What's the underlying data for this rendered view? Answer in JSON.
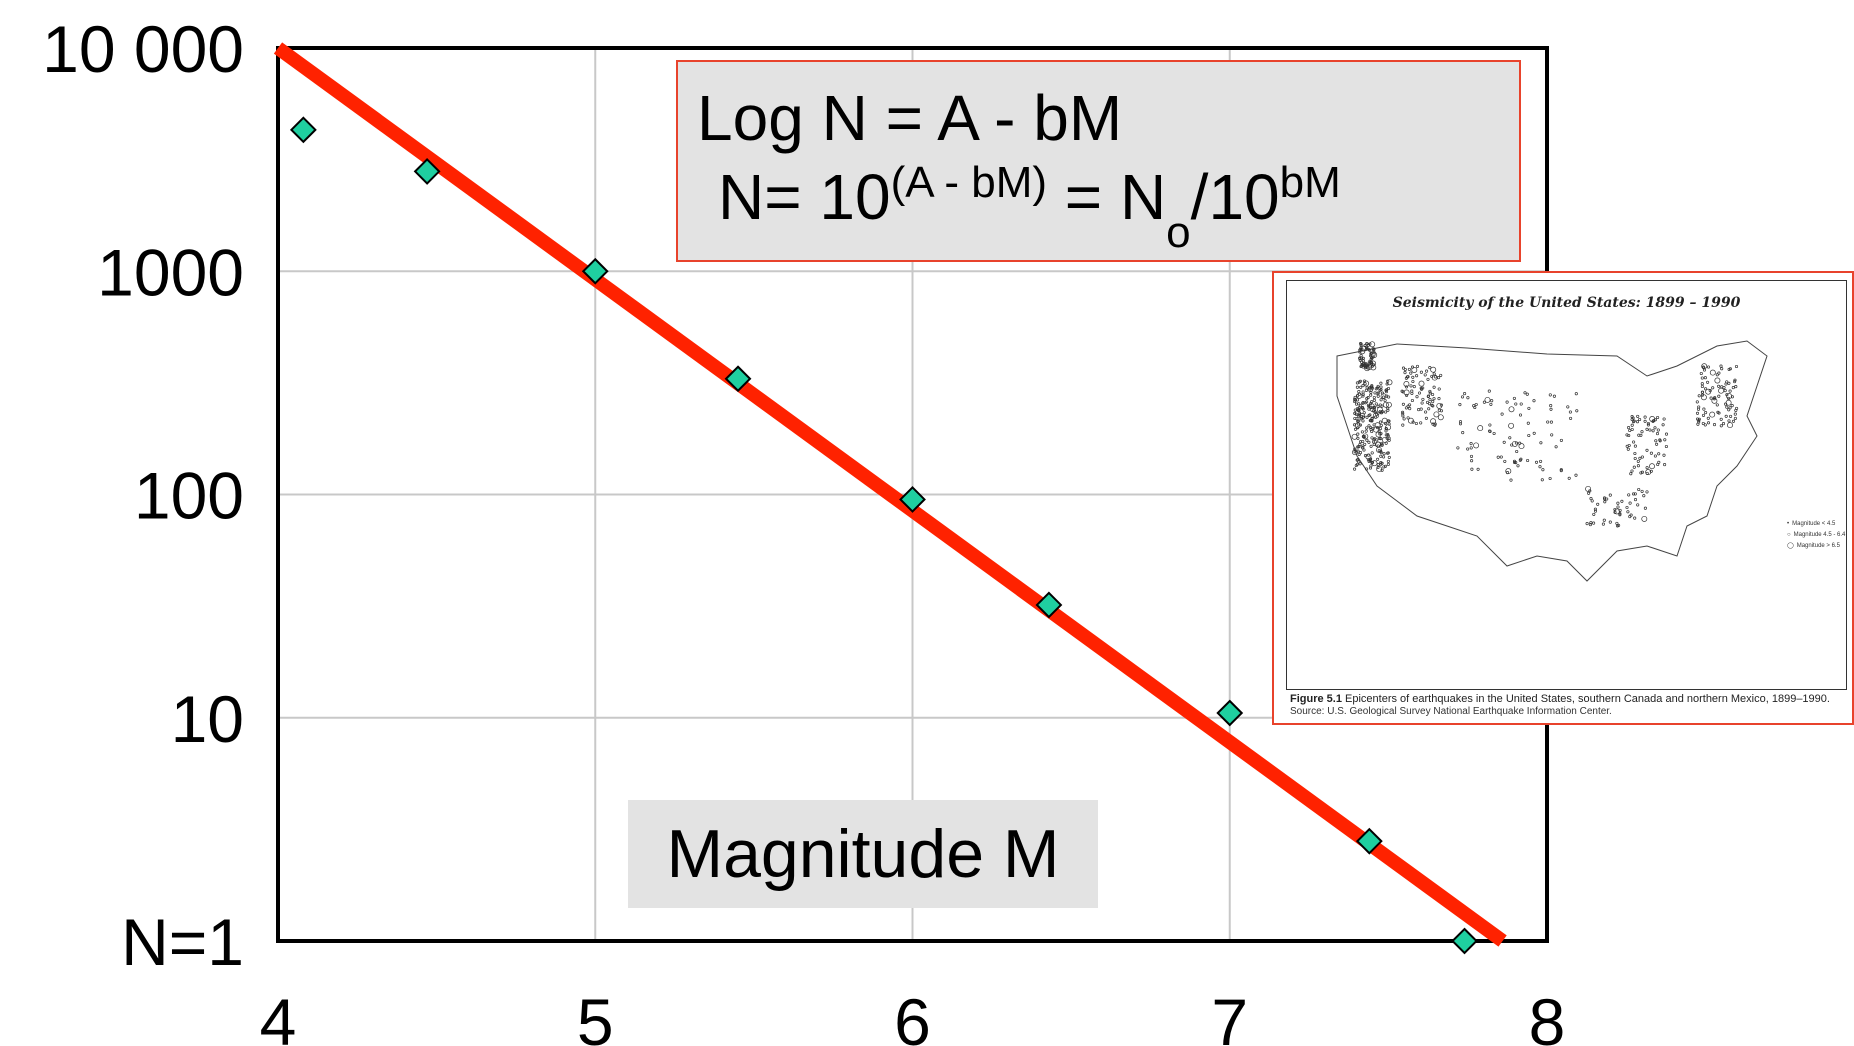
{
  "chart_data": {
    "type": "scatter",
    "title": "",
    "xlabel": "Magnitude M",
    "ylabel": "",
    "y_scale": "log",
    "xlim": [
      4,
      8
    ],
    "ylim": [
      1,
      10000
    ],
    "grid": true,
    "x_ticks": [
      "4",
      "5",
      "6",
      "7",
      "8"
    ],
    "y_ticks": [
      {
        "value": 10000,
        "label": "10 000"
      },
      {
        "value": 1000,
        "label": "1000"
      },
      {
        "value": 100,
        "label": "100"
      },
      {
        "value": 10,
        "label": "10"
      },
      {
        "value": 1,
        "label": "N=1"
      }
    ],
    "series": [
      {
        "marker": "diamond",
        "color": "#1fcfa0",
        "points": [
          {
            "x": 4.08,
            "y": 4300
          },
          {
            "x": 4.47,
            "y": 2800
          },
          {
            "x": 5.0,
            "y": 1000
          },
          {
            "x": 5.45,
            "y": 330
          },
          {
            "x": 6.0,
            "y": 95
          },
          {
            "x": 6.43,
            "y": 32
          },
          {
            "x": 7.0,
            "y": 10.5
          },
          {
            "x": 7.44,
            "y": 2.8
          },
          {
            "x": 7.74,
            "y": 1.0
          }
        ]
      }
    ],
    "fit_line": {
      "color": "#ff2200",
      "x": [
        4.0,
        7.86
      ],
      "y": [
        10000,
        1
      ]
    }
  },
  "formula": {
    "line1": "Log N = A - bM",
    "line2_prefix": "N= 10",
    "line2_exp": "(A - bM)",
    "line2_mid": " = N",
    "line2_sub": "o",
    "line2_after": "/10",
    "line2_sup": "bM"
  },
  "inset": {
    "title": "Seismicity of the United States: 1899 – 1990",
    "legend": [
      "Magnitude < 4.5",
      "Magnitude 4.5 - 6.4",
      "Magnitude > 6.5"
    ],
    "caption_label": "Figure 5.1",
    "caption_text": "Epicenters of earthquakes in the United States, southern Canada and northern Mexico, 1899–1990.",
    "source": "Source: U.S. Geological Survey National Earthquake Information Center."
  }
}
